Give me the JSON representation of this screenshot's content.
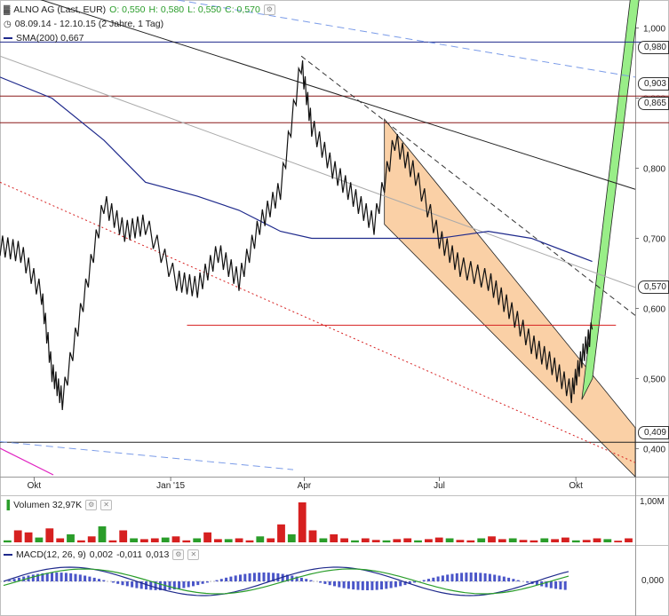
{
  "header": {
    "instrument": "ALNO AG (Last, EUR)",
    "open": "O: 0,550",
    "high": "H: 0,580",
    "low": "L: 0,550",
    "close": "C: 0,570",
    "range": "08.09.14 - 12.10.15 (2 Jahre, 1 Tag)",
    "sma": "SMA(200) 0,667"
  },
  "volume_panel": {
    "label": "Volumen 32,97K",
    "axis_label": "1,00M"
  },
  "macd_panel": {
    "label": "MACD(12, 26, 9)",
    "v1": "0,002",
    "v2": "-0,011",
    "v3": "0,013",
    "axis_label": "0,000"
  },
  "price_boxes": [
    "0,980",
    "0,903",
    "0,865",
    "0,570",
    "0,409"
  ],
  "colors": {
    "up": "#2a9d2a",
    "down": "#d62020",
    "sma": "#1f2a8c",
    "channel_fill": "#f9c896",
    "green_channel": "#99ee88",
    "hline": "#8b1a1a",
    "dashed_blue": "#7a9be8",
    "red_dotted": "#d62020"
  },
  "chart_data": {
    "type": "line",
    "title": "ALNO AG (Last, EUR)",
    "x_ticks": [
      "Okt",
      "Jan '15",
      "Apr",
      "Jul",
      "Okt"
    ],
    "y_ticks": [
      "1,000",
      "0,900",
      "0,800",
      "0,700",
      "0,600",
      "0,500",
      "0,400"
    ],
    "ylim": [
      0.36,
      1.04
    ],
    "series": [
      {
        "name": "ALNO AG (Last, EUR)",
        "x": [
          "2014-09-08",
          "2014-09-22",
          "2014-10-06",
          "2014-10-13",
          "2014-10-20",
          "2014-11-03",
          "2014-11-17",
          "2014-12-01",
          "2014-12-15",
          "2015-01-05",
          "2015-01-19",
          "2015-02-02",
          "2015-02-16",
          "2015-03-02",
          "2015-03-16",
          "2015-03-30",
          "2015-04-06",
          "2015-04-20",
          "2015-05-04",
          "2015-05-18",
          "2015-06-01",
          "2015-06-15",
          "2015-07-01",
          "2015-07-15",
          "2015-08-03",
          "2015-08-17",
          "2015-09-01",
          "2015-09-15",
          "2015-09-28",
          "2015-10-05",
          "2015-10-12"
        ],
        "values": [
          0.69,
          0.68,
          0.62,
          0.51,
          0.47,
          0.61,
          0.75,
          0.71,
          0.72,
          0.64,
          0.63,
          0.68,
          0.64,
          0.72,
          0.77,
          0.95,
          0.86,
          0.8,
          0.76,
          0.72,
          0.84,
          0.79,
          0.7,
          0.66,
          0.64,
          0.6,
          0.55,
          0.52,
          0.48,
          0.53,
          0.57
        ]
      },
      {
        "name": "SMA(200)",
        "x": [
          "2014-09-08",
          "2014-10-13",
          "2014-11-17",
          "2014-12-15",
          "2015-01-19",
          "2015-02-16",
          "2015-03-16",
          "2015-04-06",
          "2015-05-04",
          "2015-06-01",
          "2015-07-01",
          "2015-08-03",
          "2015-09-01",
          "2015-10-12"
        ],
        "values": [
          0.93,
          0.9,
          0.84,
          0.78,
          0.76,
          0.74,
          0.71,
          0.7,
          0.7,
          0.7,
          0.7,
          0.71,
          0.7,
          0.667
        ]
      }
    ],
    "volume": {
      "label": "Volumen",
      "last": "32,97K",
      "axis_max": "1,00M",
      "values": [
        0.05,
        0.3,
        0.25,
        0.12,
        0.35,
        0.1,
        0.2,
        0.05,
        0.15,
        0.4,
        0.05,
        0.3,
        0.1,
        0.08,
        0.1,
        0.12,
        0.15,
        0.05,
        0.1,
        0.25,
        0.08,
        0.08,
        0.1,
        0.05,
        0.15,
        0.1,
        0.45,
        0.2,
        1.0,
        0.3,
        0.1,
        0.2,
        0.1,
        0.05,
        0.1,
        0.06,
        0.05,
        0.08,
        0.1,
        0.05,
        0.08,
        0.12,
        0.1,
        0.06,
        0.05,
        0.1,
        0.15,
        0.08,
        0.1,
        0.06,
        0.05,
        0.1,
        0.08,
        0.12,
        0.05,
        0.06,
        0.1,
        0.08,
        0.04,
        0.1
      ]
    },
    "macd": {
      "label": "MACD(12, 26, 9)",
      "values": {
        "macd": 0.002,
        "signal": -0.011,
        "histogram": 0.013
      }
    }
  }
}
